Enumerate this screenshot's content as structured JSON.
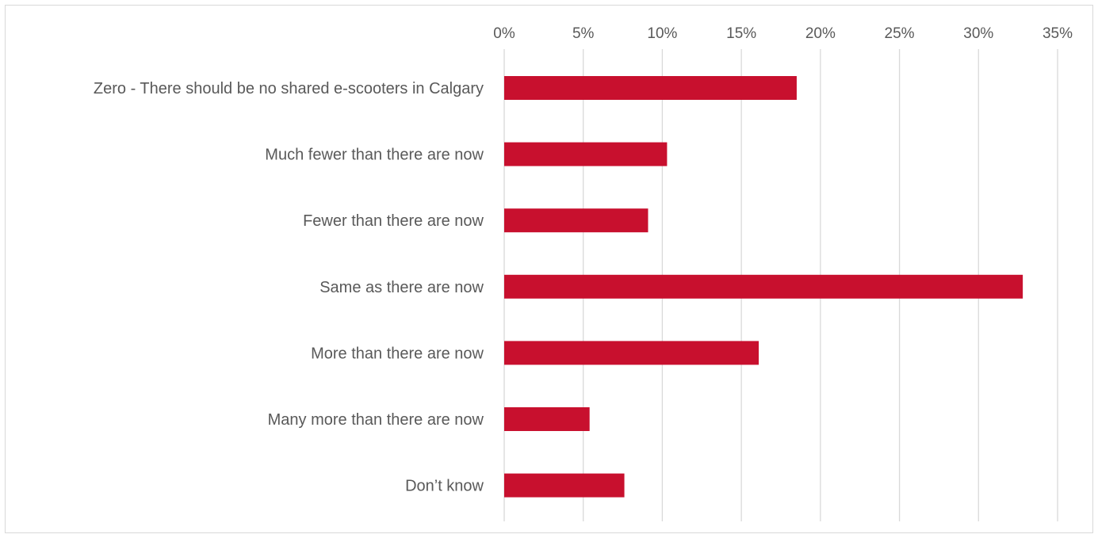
{
  "chart_data": {
    "type": "bar",
    "orientation": "horizontal",
    "title": "",
    "xlabel": "",
    "ylabel": "",
    "categories": [
      "Zero - There should be no shared e-scooters in Calgary",
      "Much fewer than there are now",
      "Fewer than there are now",
      "Same as there are now",
      "More than there are now",
      "Many more than there are now",
      "Don’t know"
    ],
    "values": [
      18.5,
      10.3,
      9.1,
      32.8,
      16.1,
      5.4,
      7.6
    ],
    "unit": "%",
    "xlim": [
      0,
      35
    ],
    "xticks": [
      0,
      5,
      10,
      15,
      20,
      25,
      30,
      35
    ],
    "xtick_labels": [
      "0%",
      "5%",
      "10%",
      "15%",
      "20%",
      "25%",
      "30%",
      "35%"
    ],
    "axis_position": "top",
    "grid": true,
    "legend": "none",
    "bar_color": "#c8102e"
  }
}
